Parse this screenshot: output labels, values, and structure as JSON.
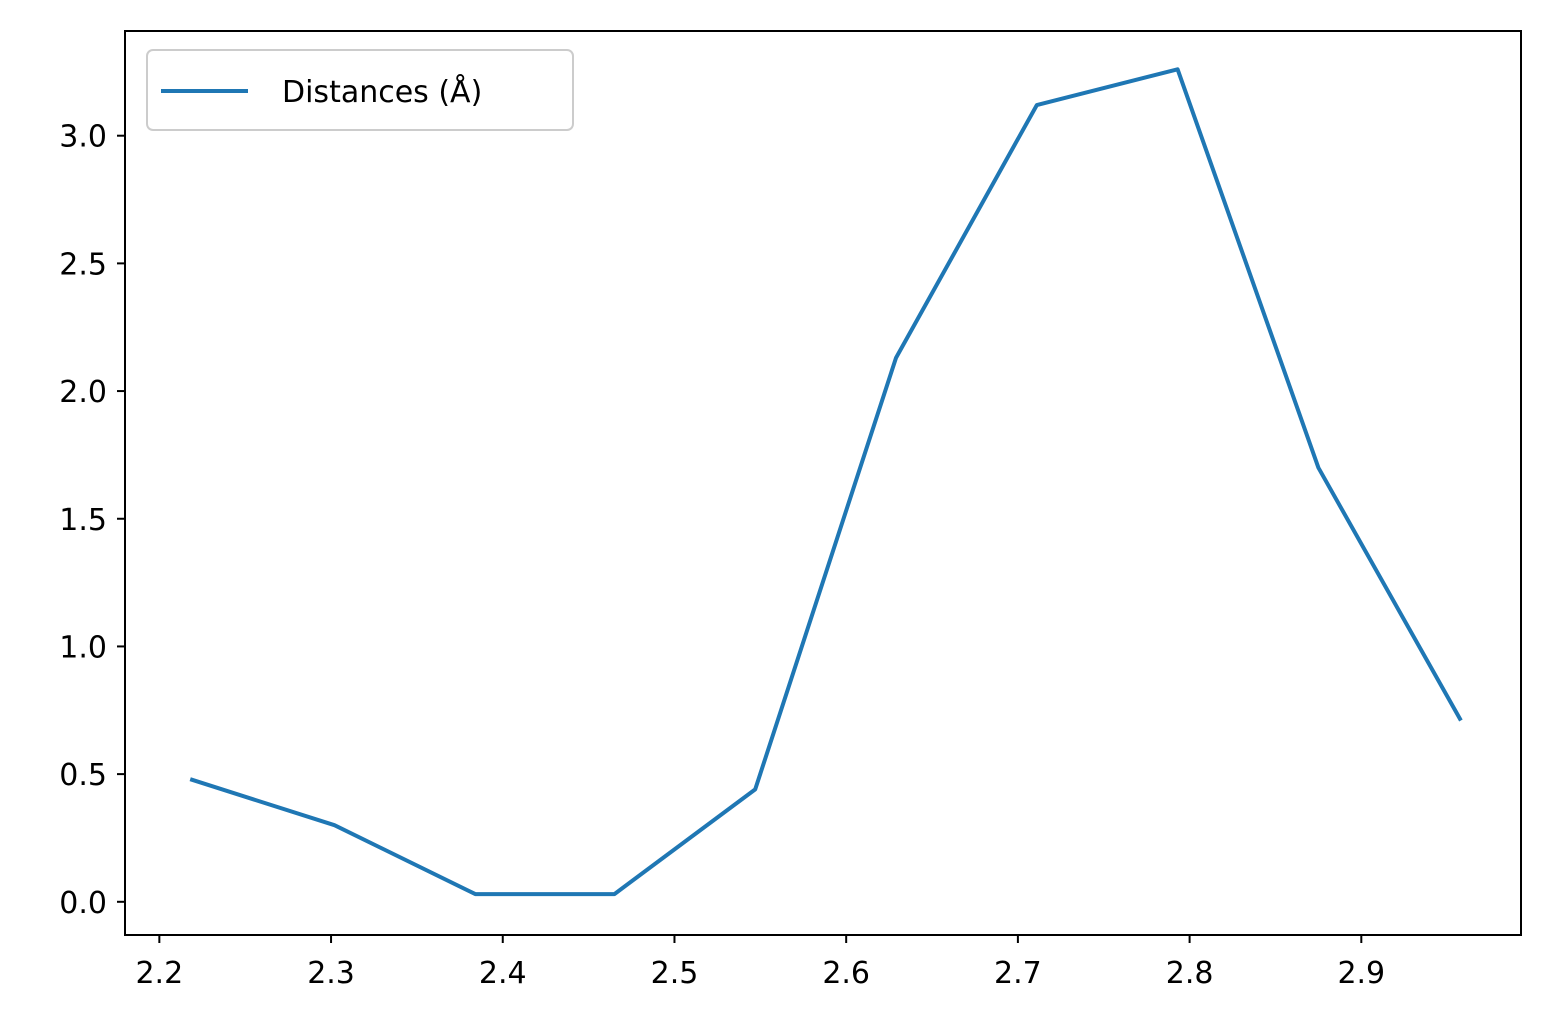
{
  "chart_data": {
    "type": "line",
    "title": "",
    "xlabel": "",
    "ylabel": "",
    "xlim": [
      2.18,
      2.993
    ],
    "ylim": [
      -0.13,
      3.41
    ],
    "xticks": [
      2.2,
      2.3,
      2.4,
      2.5,
      2.6,
      2.7,
      2.8,
      2.9
    ],
    "xtick_labels": [
      "2.2",
      "2.3",
      "2.4",
      "2.5",
      "2.6",
      "2.7",
      "2.8",
      "2.9"
    ],
    "yticks": [
      0.0,
      0.5,
      1.0,
      1.5,
      2.0,
      2.5,
      3.0
    ],
    "ytick_labels": [
      "0.0",
      "0.5",
      "1.0",
      "1.5",
      "2.0",
      "2.5",
      "3.0"
    ],
    "grid": false,
    "legend_position": "top-left",
    "series": [
      {
        "name": "Distances (Å)",
        "color": "#1f77b4",
        "x": [
          2.218,
          2.302,
          2.384,
          2.465,
          2.547,
          2.629,
          2.711,
          2.793,
          2.875,
          2.958
        ],
        "y": [
          0.48,
          0.3,
          0.03,
          0.03,
          0.44,
          2.13,
          3.12,
          3.26,
          1.7,
          0.71
        ]
      }
    ]
  }
}
